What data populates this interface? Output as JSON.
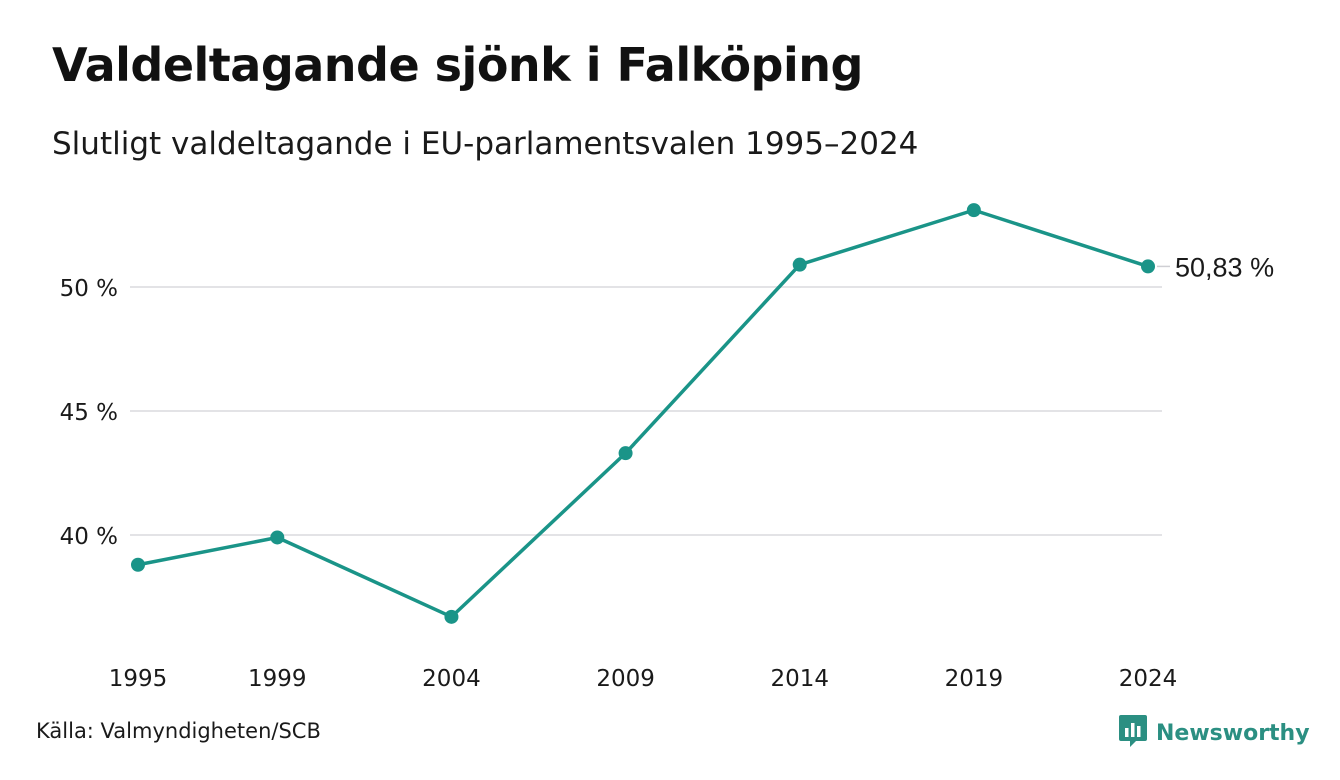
{
  "header": {
    "title": "Valdeltagande sjönk i Falköping",
    "subtitle": "Slutligt valdeltagande i EU-parlamentsvalen 1995–2024"
  },
  "footer": {
    "source": "Källa: Valmyndigheten/SCB",
    "brand": "Newsworthy",
    "brand_icon": "bar-chart-speech-bubble-icon",
    "brand_color": "#2b8f82"
  },
  "chart_data": {
    "type": "line",
    "x": [
      1995,
      1999,
      2004,
      2009,
      2014,
      2019,
      2024
    ],
    "series": [
      {
        "values": [
          38.8,
          39.9,
          36.7,
          43.3,
          50.9,
          53.1,
          50.83
        ],
        "color": "#1a9488"
      }
    ],
    "ylim": [
      35,
      54.5
    ],
    "y_ticks": [
      40,
      45,
      50
    ],
    "y_tick_labels": [
      "40 %",
      "45 %",
      "50 %"
    ],
    "x_tick_labels": [
      "1995",
      "1999",
      "2004",
      "2009",
      "2014",
      "2019",
      "2024"
    ],
    "end_label": "50,83 %",
    "grid": true,
    "xlabel": "",
    "ylabel": ""
  }
}
